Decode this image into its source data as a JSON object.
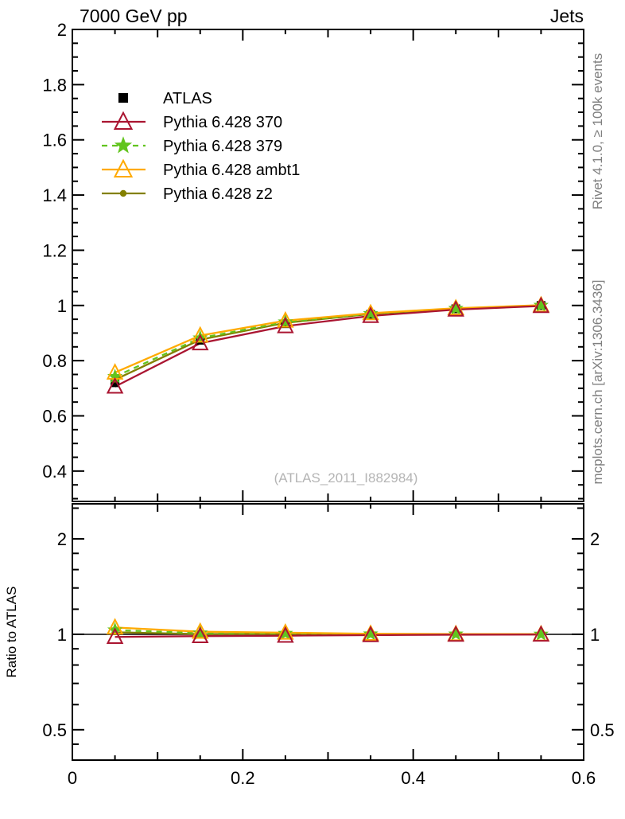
{
  "titles": {
    "top_left": "7000 GeV pp",
    "top_right": "Jets"
  },
  "side_texts": {
    "top_rotated": "Rivet 4.1.0, ≥ 100k events",
    "bottom_rotated": "mcplots.cern.ch [arXiv:1306.3436]"
  },
  "watermark": "(ATLAS_2011_I882984)",
  "ratio_panel_label": "Ratio to ATLAS",
  "colors": {
    "frame": "#000000",
    "side_text": "#808080",
    "watermark": "#b4b4b4"
  },
  "chart_data": {
    "type": "line",
    "title": "7000 GeV pp — Jets",
    "xlabel": "",
    "ylabel": "",
    "ratio_ylabel": "Ratio to ATLAS",
    "legend_position": "top-left",
    "grid": false,
    "x": [
      0.05,
      0.15,
      0.25,
      0.35,
      0.45,
      0.55
    ],
    "series": [
      {
        "name": "ATLAS",
        "color": "#000000",
        "marker": "square-filled",
        "line": "none",
        "values": [
          0.72,
          0.874,
          0.934,
          0.968,
          0.988,
          1.0
        ],
        "ratio": [
          1.0,
          1.0,
          1.0,
          1.0,
          1.0,
          1.0
        ]
      },
      {
        "name": "Pythia 6.428 370",
        "color": "#aa1531",
        "marker": "triangle-open",
        "line": "solid",
        "values": [
          0.706,
          0.863,
          0.925,
          0.962,
          0.985,
          0.998
        ],
        "ratio": [
          0.981,
          0.987,
          0.99,
          0.994,
          0.997,
          0.998
        ]
      },
      {
        "name": "Pythia 6.428 379",
        "color": "#62c41e",
        "marker": "star-filled",
        "line": "dashed",
        "values": [
          0.742,
          0.882,
          0.94,
          0.97,
          0.989,
          1.0
        ],
        "ratio": [
          1.031,
          1.009,
          1.006,
          1.002,
          1.001,
          1.0
        ]
      },
      {
        "name": "Pythia 6.428 ambt1",
        "color": "#ffaa00",
        "marker": "triangle-open",
        "line": "solid",
        "values": [
          0.757,
          0.891,
          0.945,
          0.972,
          0.99,
          1.001
        ],
        "ratio": [
          1.051,
          1.019,
          1.012,
          1.004,
          1.002,
          1.001
        ]
      },
      {
        "name": "Pythia 6.428 z2",
        "color": "#838000",
        "marker": "dot-filled",
        "line": "solid",
        "values": [
          0.731,
          0.876,
          0.937,
          0.969,
          0.988,
          1.0
        ],
        "ratio": [
          1.015,
          1.002,
          1.003,
          1.001,
          1.0,
          1.0
        ]
      }
    ],
    "x_axis": {
      "min": 0,
      "max": 0.6,
      "major_ticks": [
        0,
        0.2,
        0.4,
        0.6
      ],
      "tick_labels": [
        "0",
        "0.2",
        "0.4",
        "0.6"
      ],
      "medium_ticks": [
        0.1,
        0.3,
        0.5
      ],
      "minor_step": 0.05
    },
    "y_axis_main": {
      "scale": "linear",
      "min": 0.29,
      "max": 2.0,
      "major_ticks": [
        0.4,
        0.6,
        0.8,
        1.0,
        1.2,
        1.4,
        1.6,
        1.8,
        2.0
      ],
      "tick_labels": [
        "0.4",
        "0.6",
        "0.8",
        "1",
        "1.2",
        "1.4",
        "1.6",
        "1.8",
        "2"
      ],
      "minor_step": 0.05
    },
    "y_axis_ratio": {
      "scale": "log",
      "min": 0.401,
      "max": 2.58,
      "major_ticks": [
        0.5,
        1,
        2
      ],
      "tick_labels": [
        "0.5",
        "1",
        "2"
      ],
      "minor_ticks": [
        0.45,
        0.6,
        0.7,
        0.8,
        0.9,
        1.2,
        1.4,
        1.6,
        1.8,
        2.5
      ],
      "reference_line": 1
    }
  }
}
